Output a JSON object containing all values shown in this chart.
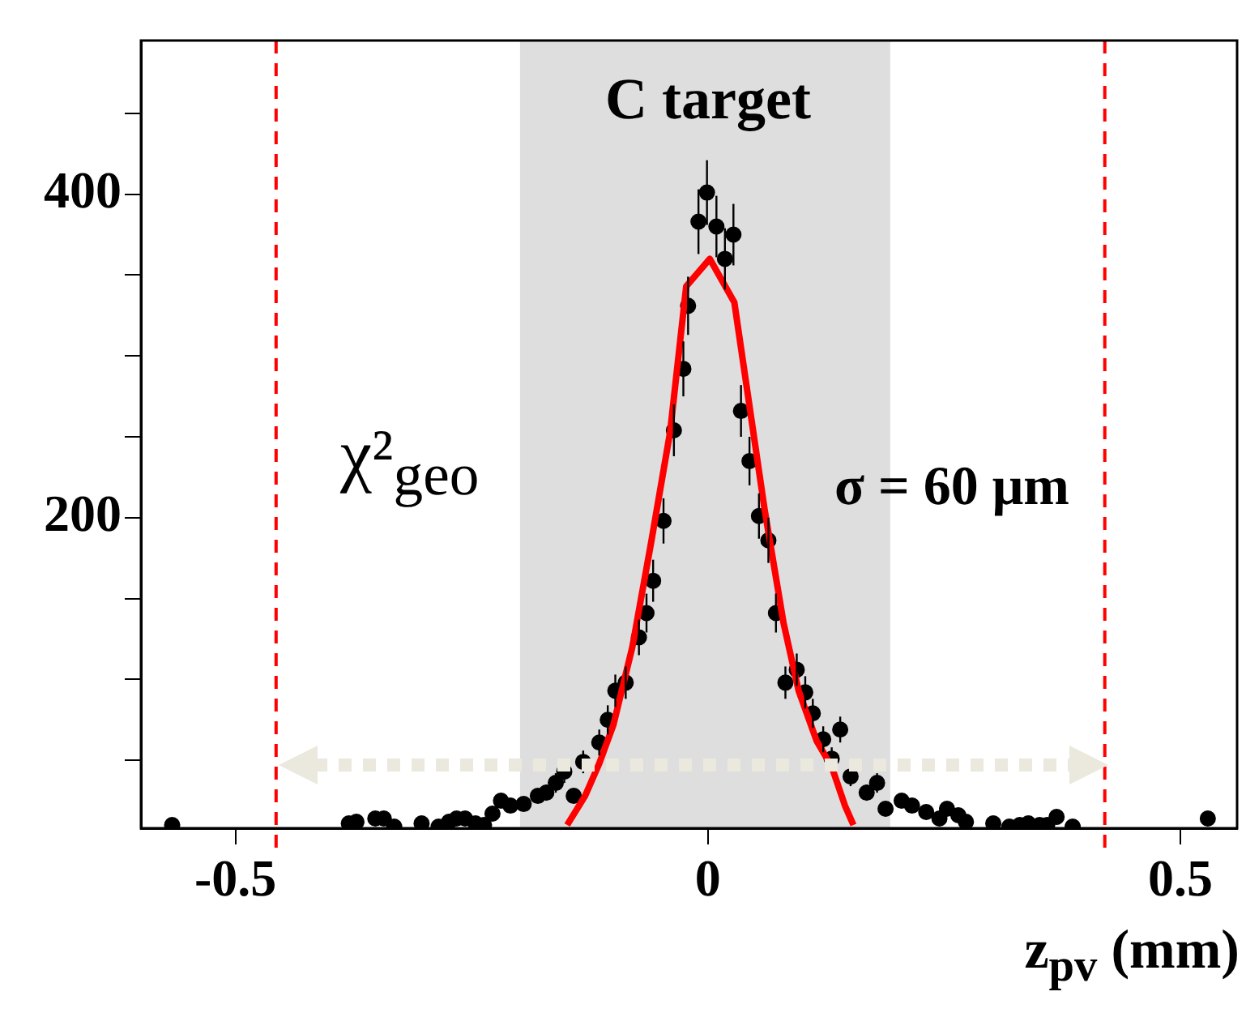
{
  "chart_data": {
    "type": "scatter",
    "xlabel": "z$_{pv}$ (mm)",
    "xlim": [
      -0.6,
      0.56
    ],
    "xticks": [
      -0.5,
      0,
      0.5
    ],
    "ylim": [
      8,
      495
    ],
    "yticks": [
      {
        "value": 50,
        "label": null
      },
      {
        "value": 100,
        "label": null
      },
      {
        "value": 150,
        "label": null
      },
      200,
      {
        "value": 250,
        "label": null
      },
      {
        "value": 300,
        "label": null
      },
      {
        "value": 350,
        "label": null
      },
      400,
      {
        "value": 450,
        "label": null
      }
    ],
    "grid": false,
    "legend": false,
    "marker": "circle",
    "series": [
      {
        "color": "#000000",
        "x": [
          -0.567,
          -0.38,
          -0.372,
          -0.352,
          -0.343,
          -0.332,
          -0.303,
          -0.285,
          -0.274,
          -0.266,
          -0.257,
          -0.246,
          -0.237,
          -0.228,
          -0.219,
          -0.209,
          -0.195,
          -0.18,
          -0.171,
          -0.161,
          -0.152,
          -0.142,
          -0.132,
          -0.115,
          -0.106,
          -0.098,
          -0.087,
          -0.073,
          -0.065,
          -0.058,
          -0.047,
          -0.036,
          -0.026,
          -0.021,
          -0.01,
          -0.001,
          0.009,
          0.018,
          0.027,
          0.035,
          0.044,
          0.054,
          0.064,
          0.072,
          0.082,
          0.094,
          0.103,
          0.111,
          0.122,
          0.131,
          0.14,
          0.151,
          0.168,
          0.179,
          0.188,
          0.205,
          0.216,
          0.231,
          0.245,
          0.253,
          0.265,
          0.273,
          0.302,
          0.319,
          0.33,
          0.339,
          0.351,
          0.359,
          0.369,
          0.386,
          0.529
        ],
        "values": [
          10,
          11,
          12,
          14,
          14,
          9,
          11,
          9,
          12,
          14,
          14,
          11,
          10,
          17,
          25,
          22,
          23,
          28,
          30,
          36,
          43,
          28,
          49,
          61,
          75,
          93,
          98,
          126,
          141,
          161,
          198,
          254,
          292,
          331,
          383,
          401,
          380,
          360,
          375,
          266,
          235,
          201,
          186,
          141,
          98,
          106,
          92,
          79,
          63,
          51,
          69,
          40,
          30,
          36,
          20,
          25,
          22,
          18,
          14,
          20,
          16,
          12,
          11,
          9,
          10,
          11,
          10,
          10,
          15,
          9,
          14
        ],
        "errors": [
          null,
          null,
          null,
          null,
          null,
          null,
          null,
          null,
          null,
          null,
          null,
          null,
          null,
          null,
          null,
          null,
          null,
          null,
          5,
          6,
          7,
          null,
          7,
          8,
          9,
          10,
          10,
          11,
          12,
          13,
          14,
          16,
          17,
          18,
          20,
          20,
          19,
          19,
          19,
          16,
          15,
          14,
          14,
          12,
          10,
          10,
          10,
          9,
          8,
          7,
          8,
          6,
          5,
          6,
          null,
          null,
          null,
          null,
          null,
          null,
          null,
          null,
          null,
          null,
          null,
          null,
          null,
          null,
          null,
          null,
          null
        ]
      },
      {
        "type": "line",
        "marker": "none",
        "color": "#ff0000",
        "x": [
          -0.149,
          -0.13,
          -0.115,
          -0.1,
          -0.08,
          -0.06,
          -0.04,
          -0.023,
          0.002,
          0.028,
          0.04,
          0.06,
          0.08,
          0.096,
          0.115,
          0.131,
          0.145,
          0.154
        ],
        "values": [
          10,
          28,
          48,
          72,
          120,
          185,
          253,
          343,
          360,
          333,
          285,
          205,
          135,
          93,
          62,
          46,
          22,
          10
        ]
      }
    ],
    "bands": [
      {
        "axis": "x",
        "from": -0.199,
        "to": 0.193,
        "color": "#a0a0a0"
      }
    ],
    "ref_lines": [
      {
        "axis": "x",
        "value": -0.457,
        "color": "#ff0000",
        "line_style": "dashed"
      },
      {
        "axis": "x",
        "value": 0.42,
        "color": "#ff0000",
        "line_style": "dashed"
      }
    ],
    "annotations": [
      "C target",
      "χ²$_{geo}$",
      "σ = 60 μm"
    ]
  }
}
